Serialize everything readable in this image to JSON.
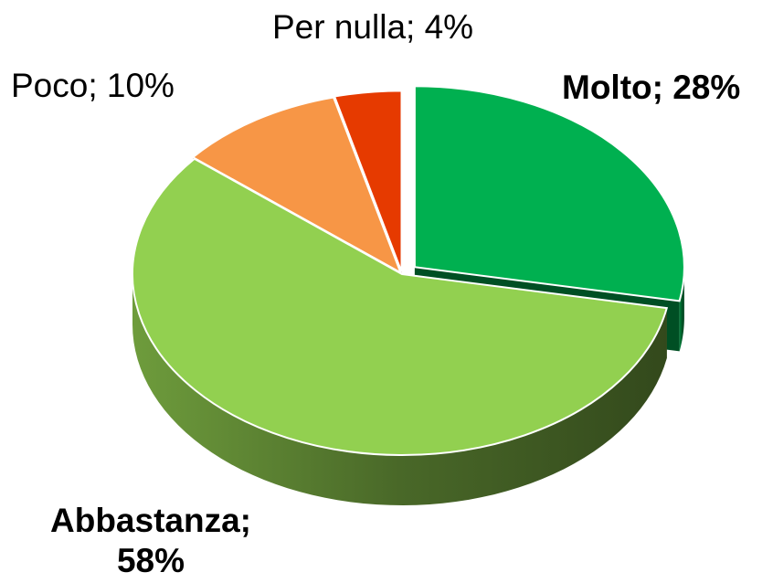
{
  "chart_data": {
    "type": "pie",
    "values": [
      28,
      58,
      10,
      4
    ],
    "value_labels": [
      "Molto; 28%",
      "Abbastanza; 58%",
      "Poco; 10%",
      "Per nulla; 4%"
    ],
    "colors": [
      "#00b050",
      "#92d050",
      "#f79646",
      "#e63a00"
    ],
    "three_d": true
  }
}
